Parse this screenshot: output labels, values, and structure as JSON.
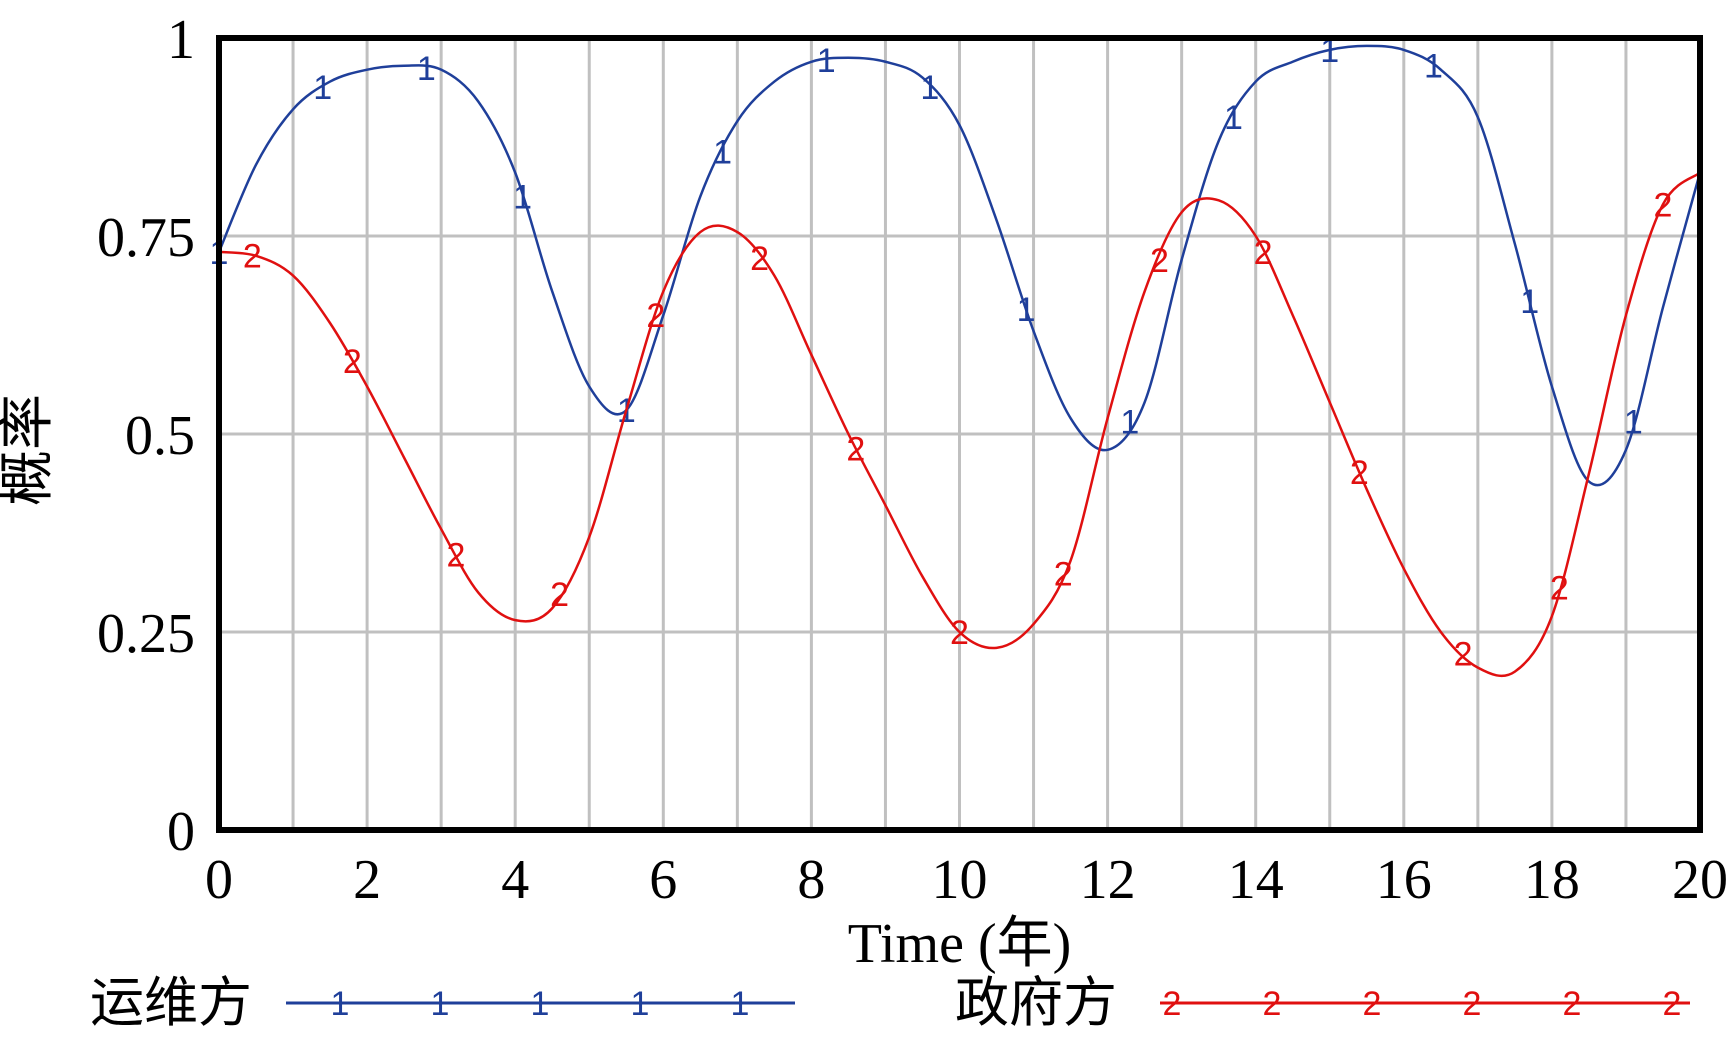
{
  "chart_data": {
    "type": "line",
    "xlabel": "Time (年)",
    "ylabel": "概率",
    "xlim": [
      0,
      20
    ],
    "ylim": [
      0,
      1
    ],
    "xticks": [
      0,
      2,
      4,
      6,
      8,
      10,
      12,
      14,
      16,
      18,
      20
    ],
    "yticks": [
      0,
      0.25,
      0.5,
      0.75,
      1
    ],
    "ytick_labels": [
      "0",
      "0.25",
      "0.5",
      "0.75",
      "1"
    ],
    "grid": true,
    "legend_position": "bottom",
    "series": [
      {
        "name": "运维方",
        "marker": "1",
        "color": "#1f3f9a",
        "x": [
          0,
          0.5,
          1,
          1.5,
          2,
          2.5,
          3,
          3.5,
          4,
          4.5,
          5,
          5.5,
          6,
          6.5,
          7,
          7.5,
          8,
          8.5,
          9,
          9.5,
          10,
          10.5,
          11,
          11.5,
          12,
          12.5,
          13,
          13.5,
          14,
          14.5,
          15,
          15.5,
          16,
          16.5,
          17,
          17.5,
          18,
          18.5,
          19,
          19.5,
          20
        ],
        "y": [
          0.73,
          0.84,
          0.91,
          0.945,
          0.96,
          0.965,
          0.96,
          0.92,
          0.83,
          0.68,
          0.56,
          0.53,
          0.65,
          0.8,
          0.895,
          0.945,
          0.97,
          0.975,
          0.97,
          0.95,
          0.89,
          0.77,
          0.63,
          0.52,
          0.48,
          0.54,
          0.72,
          0.87,
          0.945,
          0.97,
          0.985,
          0.99,
          0.985,
          0.96,
          0.9,
          0.74,
          0.56,
          0.44,
          0.48,
          0.66,
          0.83
        ],
        "marker_x": [
          0,
          1.4,
          2.8,
          4.1,
          5.5,
          6.8,
          8.2,
          9.6,
          10.9,
          12.3,
          13.7,
          15,
          16.4,
          17.7,
          19.1
        ]
      },
      {
        "name": "政府方",
        "marker": "2",
        "color": "#e01010",
        "x": [
          0,
          0.5,
          1,
          1.5,
          2,
          2.5,
          3,
          3.5,
          4,
          4.5,
          5,
          5.5,
          6,
          6.5,
          7,
          7.5,
          8,
          8.5,
          9,
          9.5,
          10,
          10.5,
          11,
          11.5,
          12,
          12.5,
          13,
          13.5,
          14,
          14.5,
          15,
          15.5,
          16,
          16.5,
          17,
          17.5,
          18,
          18.5,
          19,
          19.5,
          20
        ],
        "y": [
          0.73,
          0.725,
          0.7,
          0.64,
          0.56,
          0.47,
          0.38,
          0.3,
          0.265,
          0.28,
          0.37,
          0.53,
          0.68,
          0.755,
          0.755,
          0.7,
          0.6,
          0.5,
          0.41,
          0.32,
          0.25,
          0.23,
          0.26,
          0.34,
          0.52,
          0.68,
          0.78,
          0.795,
          0.75,
          0.65,
          0.54,
          0.43,
          0.33,
          0.25,
          0.205,
          0.2,
          0.27,
          0.45,
          0.65,
          0.79,
          0.83
        ],
        "marker_x": [
          0.45,
          1.8,
          3.2,
          4.6,
          5.9,
          7.3,
          8.6,
          10,
          11.4,
          12.7,
          14.1,
          15.4,
          16.8,
          18.1,
          19.5
        ]
      }
    ]
  },
  "legend": {
    "items": [
      {
        "label": "运维方",
        "marker": "1",
        "color": "#1f3f9a",
        "markers": [
          "1",
          "1",
          "1",
          "1",
          "1"
        ]
      },
      {
        "label": "政府方",
        "marker": "2",
        "color": "#e01010",
        "markers": [
          "2",
          "2",
          "2",
          "2",
          "2",
          "2"
        ]
      }
    ]
  }
}
